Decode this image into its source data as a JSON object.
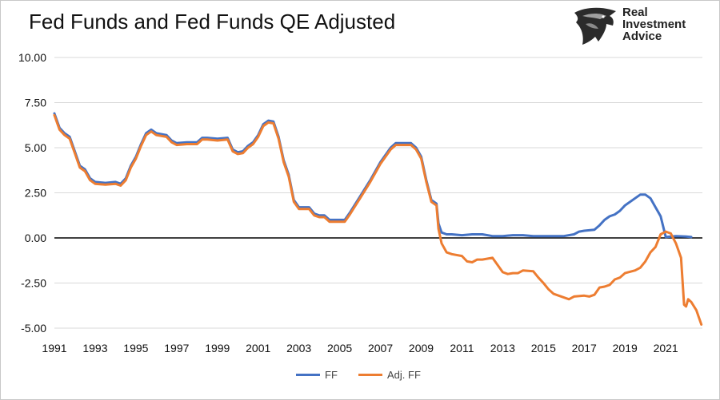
{
  "chart_data": {
    "type": "line",
    "title": "Fed Funds and Fed Funds QE Adjusted",
    "xlabel": "",
    "ylabel": "",
    "xlim": [
      1991,
      2021.5
    ],
    "ylim": [
      -5,
      10
    ],
    "yticks": [
      "10.00",
      "7.50",
      "5.00",
      "2.50",
      "0.00",
      "-2.50",
      "-5.00"
    ],
    "ytick_values": [
      10,
      7.5,
      5,
      2.5,
      0,
      -2.5,
      -5
    ],
    "xticks": [
      "1991",
      "1993",
      "1995",
      "1997",
      "1999",
      "2001",
      "2003",
      "2005",
      "2007",
      "2009",
      "2011",
      "2013",
      "2015",
      "2017",
      "2019",
      "2021"
    ],
    "xtick_values": [
      1991,
      1993,
      1995,
      1997,
      1999,
      2001,
      2003,
      2005,
      2007,
      2009,
      2011,
      2013,
      2015,
      2017,
      2019,
      2021
    ],
    "grid": true,
    "legend_position": "bottom-center",
    "series": [
      {
        "name": "FF",
        "color": "#4472C4",
        "points": [
          [
            1991.0,
            6.9
          ],
          [
            1991.25,
            6.1
          ],
          [
            1991.5,
            5.8
          ],
          [
            1991.75,
            5.6
          ],
          [
            1992.0,
            4.8
          ],
          [
            1992.25,
            4.0
          ],
          [
            1992.5,
            3.8
          ],
          [
            1992.75,
            3.3
          ],
          [
            1993.0,
            3.1
          ],
          [
            1993.5,
            3.05
          ],
          [
            1994.0,
            3.1
          ],
          [
            1994.25,
            3.0
          ],
          [
            1994.5,
            3.3
          ],
          [
            1994.75,
            4.0
          ],
          [
            1995.0,
            4.5
          ],
          [
            1995.25,
            5.2
          ],
          [
            1995.5,
            5.8
          ],
          [
            1995.75,
            6.0
          ],
          [
            1996.0,
            5.8
          ],
          [
            1996.5,
            5.7
          ],
          [
            1996.75,
            5.4
          ],
          [
            1997.0,
            5.25
          ],
          [
            1997.5,
            5.3
          ],
          [
            1998.0,
            5.3
          ],
          [
            1998.25,
            5.55
          ],
          [
            1998.5,
            5.55
          ],
          [
            1999.0,
            5.5
          ],
          [
            1999.5,
            5.55
          ],
          [
            1999.75,
            4.9
          ],
          [
            2000.0,
            4.75
          ],
          [
            2000.25,
            4.8
          ],
          [
            2000.5,
            5.1
          ],
          [
            2000.75,
            5.3
          ],
          [
            2001.0,
            5.7
          ],
          [
            2001.25,
            6.3
          ],
          [
            2001.5,
            6.5
          ],
          [
            2001.75,
            6.45
          ],
          [
            2002.0,
            5.6
          ],
          [
            2002.25,
            4.3
          ],
          [
            2002.5,
            3.5
          ],
          [
            2002.75,
            2.1
          ],
          [
            2003.0,
            1.7
          ],
          [
            2003.5,
            1.7
          ],
          [
            2003.75,
            1.35
          ],
          [
            2004.0,
            1.25
          ],
          [
            2004.25,
            1.25
          ],
          [
            2004.5,
            1.0
          ],
          [
            2005.0,
            1.0
          ],
          [
            2005.25,
            1.0
          ],
          [
            2005.5,
            1.4
          ],
          [
            2006.0,
            2.3
          ],
          [
            2006.5,
            3.2
          ],
          [
            2007.0,
            4.2
          ],
          [
            2007.5,
            5.0
          ],
          [
            2007.75,
            5.25
          ],
          [
            2008.0,
            5.25
          ],
          [
            2008.5,
            5.25
          ],
          [
            2008.75,
            5.0
          ],
          [
            2009.0,
            4.5
          ],
          [
            2009.25,
            3.2
          ],
          [
            2009.5,
            2.1
          ],
          [
            2009.75,
            1.9
          ],
          [
            2009.85,
            0.8
          ],
          [
            2010.0,
            0.3
          ],
          [
            2010.25,
            0.2
          ],
          [
            2010.5,
            0.2
          ],
          [
            2011.0,
            0.15
          ],
          [
            2011.5,
            0.2
          ],
          [
            2012.0,
            0.2
          ],
          [
            2012.5,
            0.1
          ],
          [
            2013.0,
            0.1
          ],
          [
            2013.5,
            0.15
          ],
          [
            2014.0,
            0.15
          ],
          [
            2014.5,
            0.1
          ],
          [
            2015.0,
            0.1
          ],
          [
            2015.5,
            0.1
          ],
          [
            2016.0,
            0.1
          ],
          [
            2016.5,
            0.2
          ],
          [
            2016.75,
            0.35
          ],
          [
            2017.0,
            0.4
          ],
          [
            2017.5,
            0.45
          ],
          [
            2017.75,
            0.7
          ],
          [
            2018.0,
            1.0
          ],
          [
            2018.25,
            1.2
          ],
          [
            2018.5,
            1.3
          ],
          [
            2018.75,
            1.5
          ],
          [
            2019.0,
            1.8
          ],
          [
            2019.5,
            2.2
          ],
          [
            2019.75,
            2.4
          ],
          [
            2020.0,
            2.4
          ],
          [
            2020.25,
            2.2
          ],
          [
            2020.5,
            1.7
          ],
          [
            2020.75,
            1.2
          ],
          [
            2021.0,
            0.05
          ],
          [
            2021.5,
            0.1
          ],
          [
            2022.0,
            0.08
          ],
          [
            2022.25,
            0.05
          ]
        ]
      },
      {
        "name": "Adj. FF",
        "color": "#ED7D31",
        "points": [
          [
            1991.0,
            6.8
          ],
          [
            1991.25,
            6.0
          ],
          [
            1991.5,
            5.7
          ],
          [
            1991.75,
            5.5
          ],
          [
            1992.0,
            4.7
          ],
          [
            1992.25,
            3.9
          ],
          [
            1992.5,
            3.7
          ],
          [
            1992.75,
            3.2
          ],
          [
            1993.0,
            3.0
          ],
          [
            1993.5,
            2.95
          ],
          [
            1994.0,
            3.0
          ],
          [
            1994.25,
            2.9
          ],
          [
            1994.5,
            3.2
          ],
          [
            1994.75,
            3.9
          ],
          [
            1995.0,
            4.4
          ],
          [
            1995.25,
            5.1
          ],
          [
            1995.5,
            5.7
          ],
          [
            1995.75,
            5.9
          ],
          [
            1996.0,
            5.7
          ],
          [
            1996.5,
            5.6
          ],
          [
            1996.75,
            5.3
          ],
          [
            1997.0,
            5.15
          ],
          [
            1997.5,
            5.2
          ],
          [
            1998.0,
            5.2
          ],
          [
            1998.25,
            5.45
          ],
          [
            1998.5,
            5.45
          ],
          [
            1999.0,
            5.4
          ],
          [
            1999.5,
            5.45
          ],
          [
            1999.75,
            4.8
          ],
          [
            2000.0,
            4.65
          ],
          [
            2000.25,
            4.7
          ],
          [
            2000.5,
            5.0
          ],
          [
            2000.75,
            5.2
          ],
          [
            2001.0,
            5.6
          ],
          [
            2001.25,
            6.2
          ],
          [
            2001.5,
            6.4
          ],
          [
            2001.75,
            6.35
          ],
          [
            2002.0,
            5.5
          ],
          [
            2002.25,
            4.2
          ],
          [
            2002.5,
            3.4
          ],
          [
            2002.75,
            2.0
          ],
          [
            2003.0,
            1.6
          ],
          [
            2003.5,
            1.6
          ],
          [
            2003.75,
            1.25
          ],
          [
            2004.0,
            1.15
          ],
          [
            2004.25,
            1.15
          ],
          [
            2004.5,
            0.9
          ],
          [
            2005.0,
            0.9
          ],
          [
            2005.25,
            0.9
          ],
          [
            2005.5,
            1.3
          ],
          [
            2006.0,
            2.2
          ],
          [
            2006.5,
            3.1
          ],
          [
            2007.0,
            4.1
          ],
          [
            2007.5,
            4.9
          ],
          [
            2007.75,
            5.15
          ],
          [
            2008.0,
            5.15
          ],
          [
            2008.5,
            5.15
          ],
          [
            2008.75,
            4.9
          ],
          [
            2009.0,
            4.4
          ],
          [
            2009.25,
            3.1
          ],
          [
            2009.5,
            2.0
          ],
          [
            2009.75,
            1.8
          ],
          [
            2009.85,
            0.5
          ],
          [
            2010.0,
            -0.3
          ],
          [
            2010.25,
            -0.8
          ],
          [
            2010.5,
            -0.9
          ],
          [
            2011.0,
            -1.0
          ],
          [
            2011.25,
            -1.3
          ],
          [
            2011.5,
            -1.35
          ],
          [
            2011.75,
            -1.2
          ],
          [
            2012.0,
            -1.2
          ],
          [
            2012.5,
            -1.1
          ],
          [
            2013.0,
            -1.9
          ],
          [
            2013.25,
            -2.0
          ],
          [
            2013.5,
            -1.95
          ],
          [
            2013.75,
            -1.95
          ],
          [
            2014.0,
            -1.8
          ],
          [
            2014.5,
            -1.85
          ],
          [
            2014.75,
            -2.2
          ],
          [
            2015.0,
            -2.5
          ],
          [
            2015.25,
            -2.85
          ],
          [
            2015.5,
            -3.1
          ],
          [
            2016.0,
            -3.3
          ],
          [
            2016.25,
            -3.4
          ],
          [
            2016.5,
            -3.25
          ],
          [
            2017.0,
            -3.2
          ],
          [
            2017.25,
            -3.25
          ],
          [
            2017.5,
            -3.15
          ],
          [
            2017.75,
            -2.75
          ],
          [
            2018.0,
            -2.7
          ],
          [
            2018.25,
            -2.6
          ],
          [
            2018.5,
            -2.3
          ],
          [
            2018.75,
            -2.2
          ],
          [
            2019.0,
            -1.95
          ],
          [
            2019.5,
            -1.8
          ],
          [
            2019.75,
            -1.65
          ],
          [
            2020.0,
            -1.3
          ],
          [
            2020.25,
            -0.8
          ],
          [
            2020.5,
            -0.5
          ],
          [
            2020.75,
            0.2
          ],
          [
            2021.0,
            0.35
          ],
          [
            2021.25,
            0.25
          ],
          [
            2021.5,
            -0.3
          ],
          [
            2021.75,
            -1.1
          ],
          [
            2021.9,
            -3.7
          ],
          [
            2022.0,
            -3.8
          ],
          [
            2022.1,
            -3.4
          ],
          [
            2022.25,
            -3.55
          ],
          [
            2022.5,
            -4.0
          ],
          [
            2022.75,
            -4.8
          ]
        ]
      }
    ]
  },
  "logo": {
    "line1": "Real",
    "line2": "Investment",
    "line3": "Advice",
    "icon": "eagle-head-icon"
  }
}
